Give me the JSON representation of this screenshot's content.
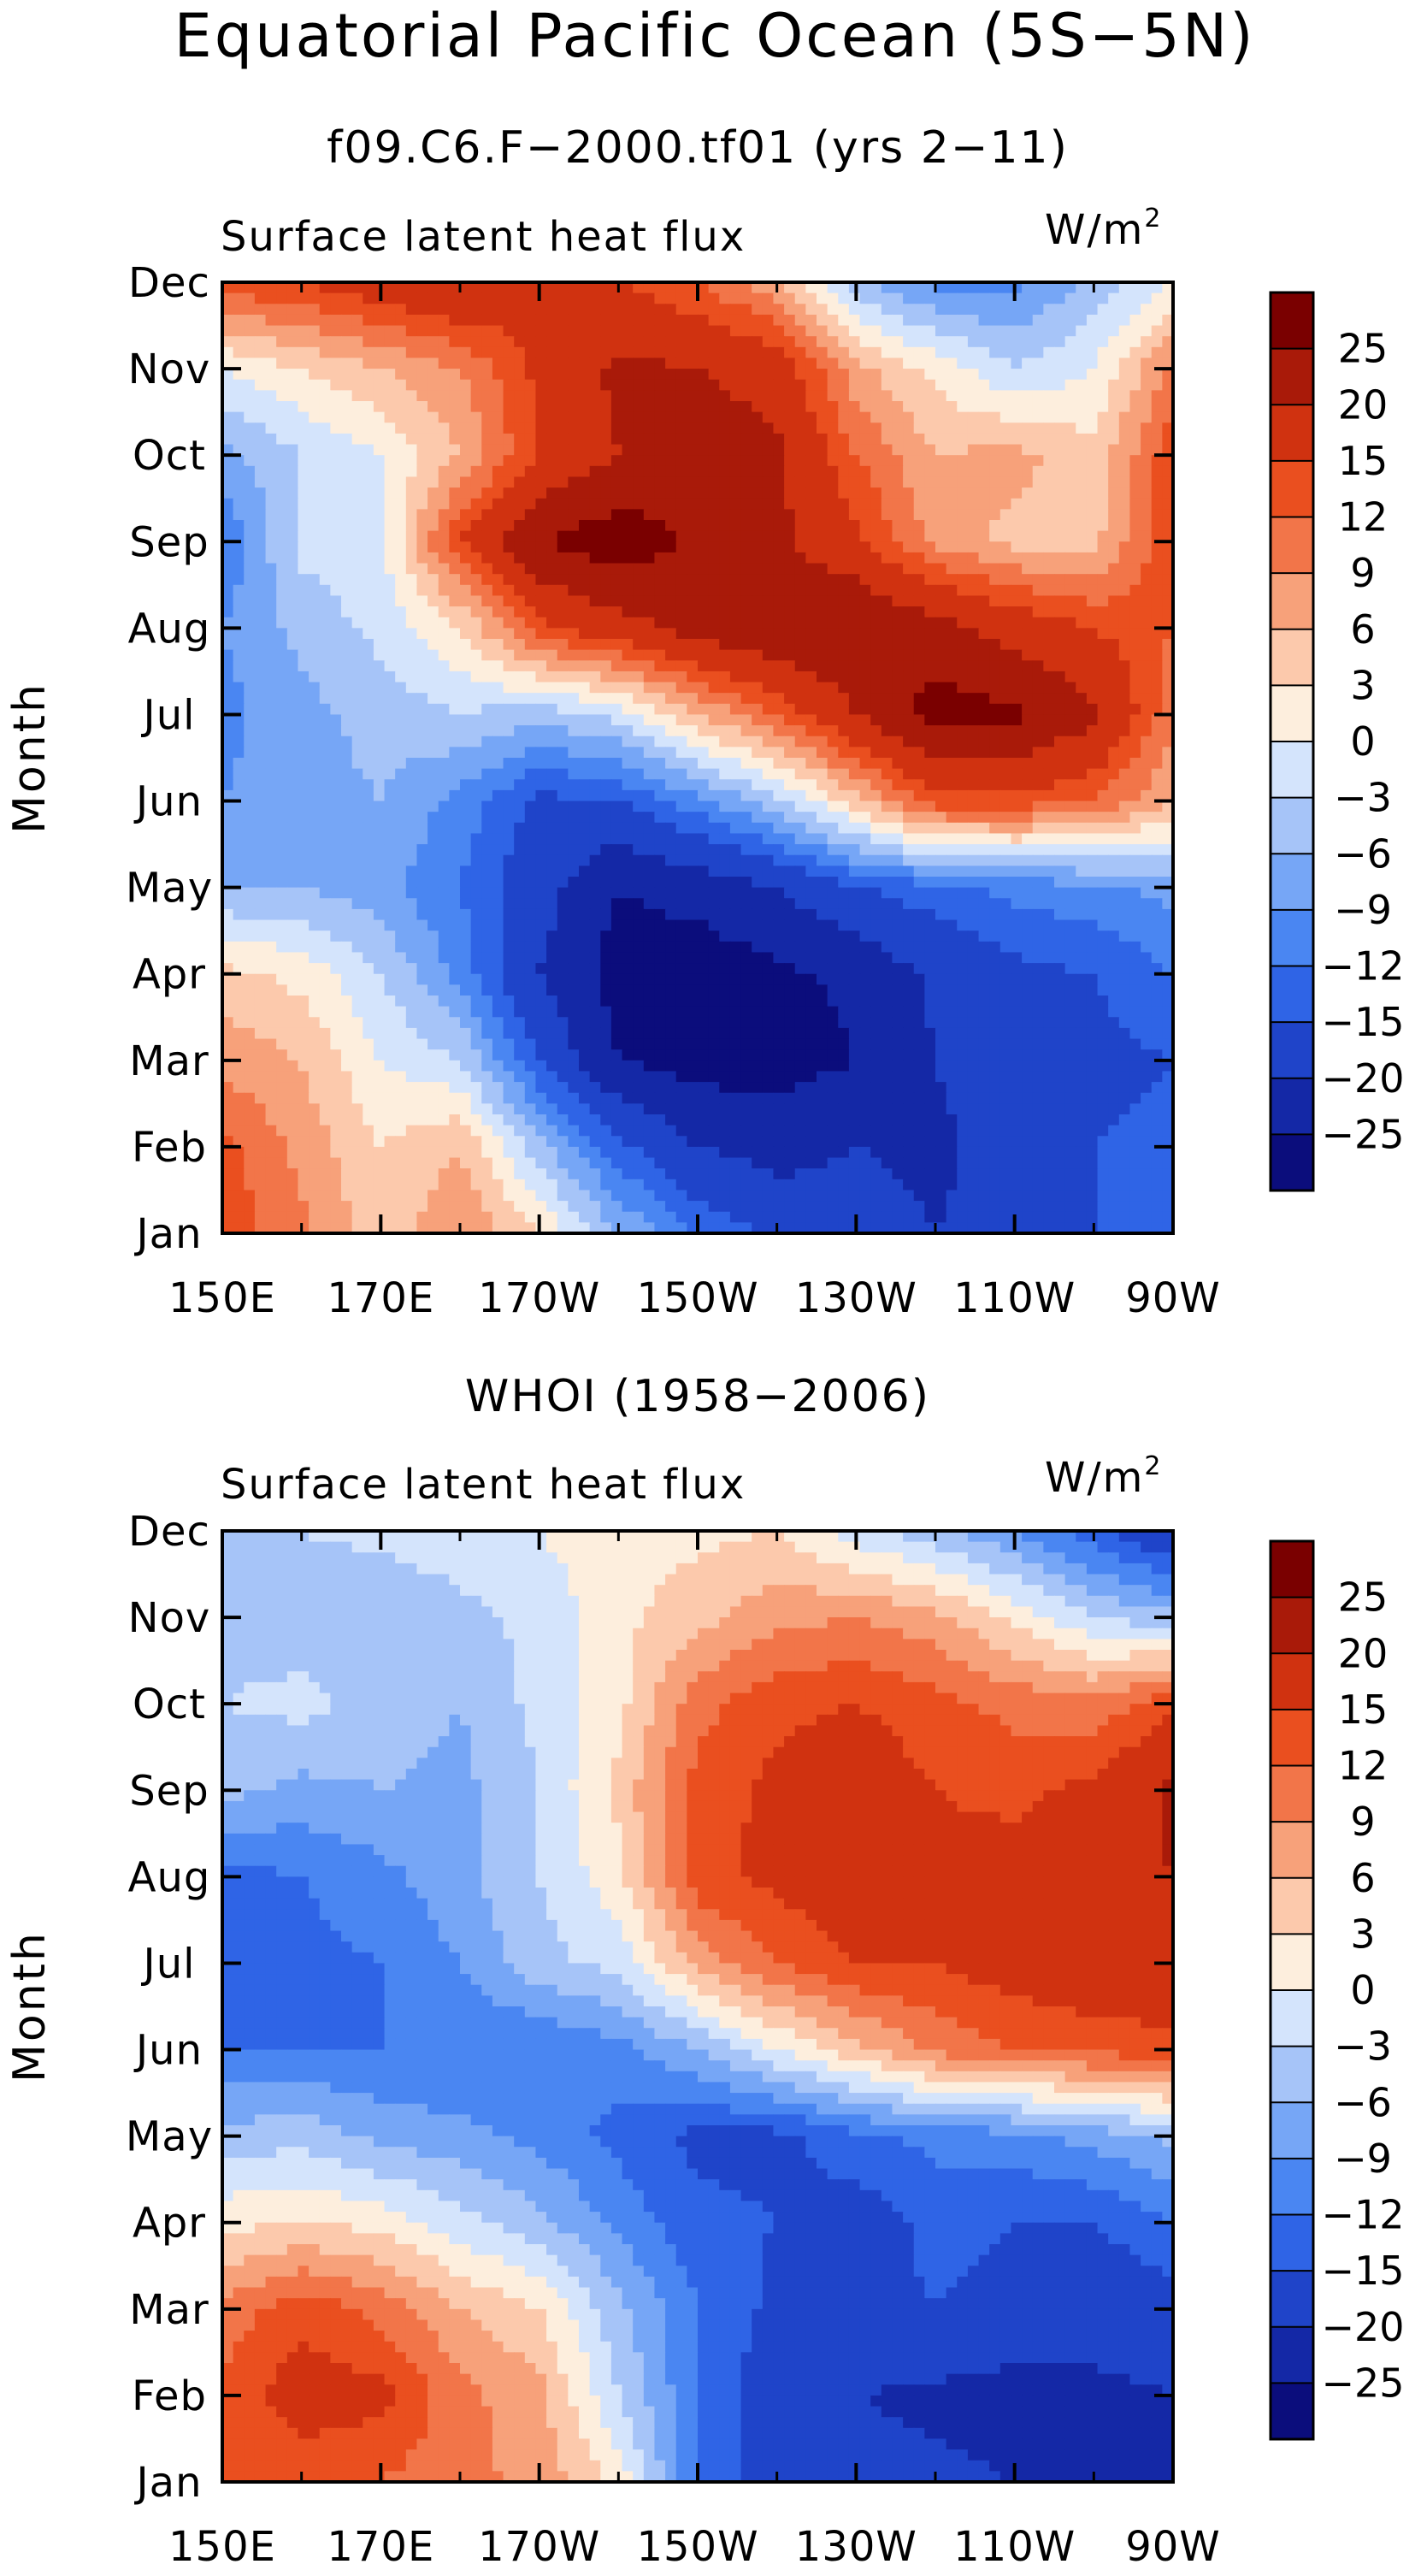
{
  "page": {
    "title": "Equatorial Pacific Ocean (5S−5N)"
  },
  "colormap": {
    "colors": [
      "#0b0d7c",
      "#1428a6",
      "#1f44c9",
      "#2f64e6",
      "#4a86f2",
      "#76a6f6",
      "#a6c4f8",
      "#d4e4fc",
      "#fdeedd",
      "#fcc9ac",
      "#f7a17a",
      "#f27549",
      "#ea4f1f",
      "#d03210",
      "#a91a09",
      "#7a0000"
    ],
    "levels": [
      -25,
      -20,
      -15,
      -12,
      -9,
      -6,
      -3,
      0,
      3,
      6,
      9,
      12,
      15,
      20,
      25
    ],
    "level_labels": [
      "25",
      "20",
      "15",
      "12",
      "9",
      "6",
      "3",
      "0",
      "−3",
      "−6",
      "−9",
      "−12",
      "−15",
      "−20",
      "−25"
    ]
  },
  "chart_data": [
    {
      "type": "heatmap",
      "title": "f09.C6.F−2000.tf01 (yrs 2−11)",
      "subtitle": "Surface latent heat flux",
      "units_label": "W/m",
      "units_sup": "2",
      "ylabel": "Month",
      "x_ticks": [
        "150E",
        "170E",
        "170W",
        "150W",
        "130W",
        "110W",
        "90W"
      ],
      "x_range": [
        150,
        270
      ],
      "y_ticks": [
        "Jan",
        "Feb",
        "Mar",
        "Apr",
        "May",
        "Jun",
        "Jul",
        "Aug",
        "Sep",
        "Oct",
        "Nov",
        "Dec"
      ],
      "lon": [
        150,
        160,
        170,
        180,
        190,
        200,
        210,
        220,
        230,
        240,
        250,
        260,
        270
      ],
      "months": [
        "Jan",
        "Feb",
        "Mar",
        "Apr",
        "May",
        "Jun",
        "Jul",
        "Aug",
        "Sep",
        "Oct",
        "Nov",
        "Dec"
      ],
      "values": [
        [
          14,
          10,
          4,
          9,
          3,
          -6,
          -12,
          -16,
          -18,
          -20,
          -18,
          -15,
          -13
        ],
        [
          13,
          8,
          3,
          6,
          -5,
          -14,
          -20,
          -22,
          -20,
          -21,
          -18,
          -15,
          -14
        ],
        [
          8,
          6,
          0,
          -3,
          -15,
          -25,
          -27,
          -27,
          -25,
          -20,
          -17,
          -16,
          -15
        ],
        [
          4,
          2,
          -3,
          -10,
          -20,
          -27,
          -28,
          -26,
          -24,
          -19,
          -16,
          -15,
          -12
        ],
        [
          -6,
          -6,
          -8,
          -12,
          -18,
          -25,
          -23,
          -20,
          -15,
          -13,
          -11,
          -10,
          -8
        ],
        [
          -9,
          -7,
          -6,
          -10,
          -16,
          -15,
          -10,
          -4,
          5,
          14,
          14,
          12,
          6
        ],
        [
          -10,
          -7,
          -5,
          -3,
          -5,
          -2,
          6,
          12,
          20,
          27,
          26,
          21,
          10
        ],
        [
          -9,
          -5,
          -2,
          3,
          14,
          18,
          22,
          25,
          25,
          22,
          18,
          15,
          12
        ],
        [
          -12,
          -2,
          -1,
          15,
          25,
          28,
          24,
          21,
          16,
          8,
          5,
          5,
          15
        ],
        [
          -7,
          -3,
          0,
          6,
          15,
          20,
          23,
          21,
          12,
          6,
          7,
          4,
          14
        ],
        [
          0,
          3,
          6,
          9,
          16,
          21,
          20,
          18,
          7,
          2,
          -3,
          0,
          10
        ],
        [
          14,
          15,
          18,
          20,
          16,
          15,
          12,
          7,
          -5,
          -10,
          -10,
          -5,
          0
        ]
      ]
    },
    {
      "type": "heatmap",
      "title": "WHOI (1958−2006)",
      "subtitle": "Surface latent heat flux",
      "units_label": "W/m",
      "units_sup": "2",
      "ylabel": "Month",
      "x_ticks": [
        "150E",
        "170E",
        "170W",
        "150W",
        "130W",
        "110W",
        "90W"
      ],
      "x_range": [
        150,
        270
      ],
      "y_ticks": [
        "Jan",
        "Feb",
        "Mar",
        "Apr",
        "May",
        "Jun",
        "Jul",
        "Aug",
        "Sep",
        "Oct",
        "Nov",
        "Dec"
      ],
      "lon": [
        150,
        160,
        170,
        180,
        190,
        200,
        210,
        220,
        230,
        240,
        250,
        260,
        270
      ],
      "months": [
        "Jan",
        "Feb",
        "Mar",
        "Apr",
        "May",
        "Jun",
        "Jul",
        "Aug",
        "Sep",
        "Oct",
        "Nov",
        "Dec"
      ],
      "values": [
        [
          12,
          13,
          12,
          10,
          8,
          2,
          -12,
          -18,
          -18,
          -19,
          -20,
          -25,
          -24
        ],
        [
          13,
          17,
          16,
          10,
          7,
          -3,
          -12,
          -18,
          -20,
          -21,
          -22,
          -21,
          -20
        ],
        [
          10,
          14,
          11,
          6,
          3,
          -5,
          -12,
          -16,
          -16,
          -15,
          -16,
          -18,
          -17
        ],
        [
          2,
          3,
          2,
          -2,
          -5,
          -10,
          -14,
          -15,
          -17,
          -14,
          -15,
          -15,
          -12
        ],
        [
          -5,
          -4,
          -7,
          -8,
          -10,
          -13,
          -16,
          -16,
          -13,
          -11,
          -10,
          -8,
          -5
        ],
        [
          -12,
          -12,
          -12,
          -12,
          -12,
          -10,
          -6,
          0,
          5,
          10,
          12,
          13,
          14
        ],
        [
          -14,
          -13,
          -12,
          -9,
          -4,
          -2,
          7,
          12,
          15,
          15,
          17,
          18,
          18
        ],
        [
          -13,
          -12,
          -10,
          -7,
          -3,
          2,
          14,
          16,
          18,
          16,
          17,
          18,
          20
        ],
        [
          -5,
          -7,
          -6,
          -7,
          -3,
          4,
          13,
          16,
          18,
          15,
          14,
          16,
          21
        ],
        [
          -3,
          -2,
          -4,
          -6,
          -2,
          2,
          11,
          14,
          15,
          13,
          11,
          10,
          14
        ],
        [
          -4,
          -5,
          -6,
          -4,
          -2,
          2,
          5,
          8,
          9,
          7,
          2,
          -3,
          -5
        ],
        [
          -3,
          -3,
          -2,
          -1,
          0,
          2,
          2,
          3,
          -2,
          -5,
          -9,
          -14,
          -20
        ]
      ]
    }
  ]
}
